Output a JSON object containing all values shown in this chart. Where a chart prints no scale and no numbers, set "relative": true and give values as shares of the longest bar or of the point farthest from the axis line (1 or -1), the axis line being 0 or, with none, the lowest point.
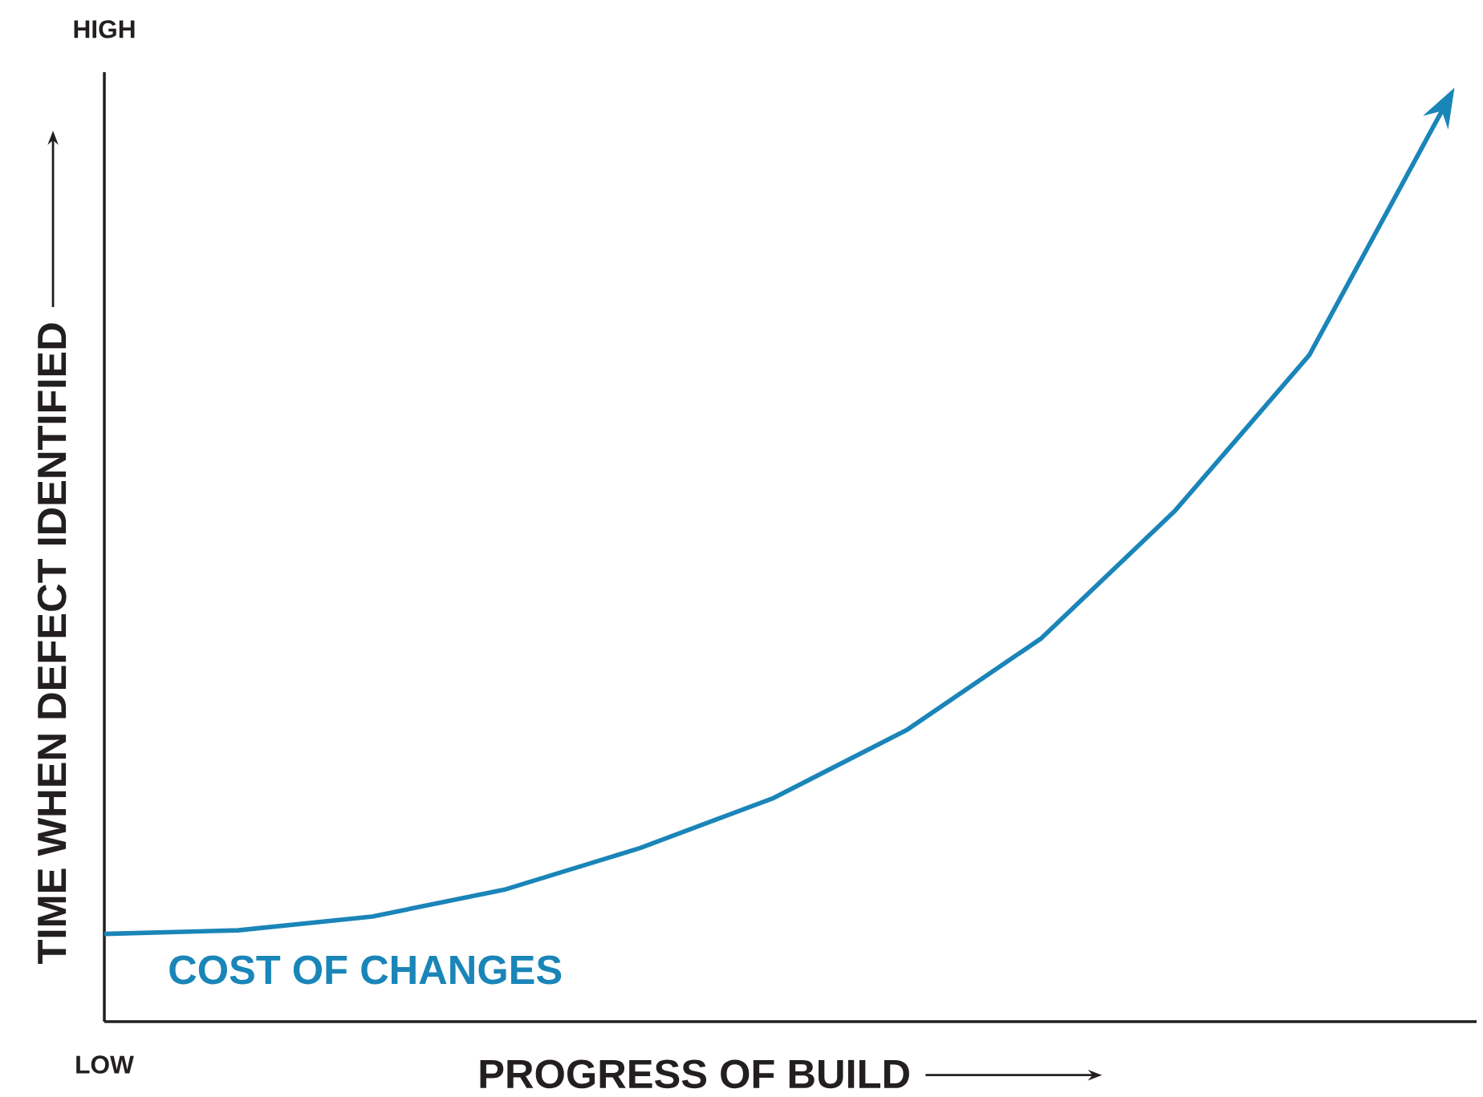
{
  "chart_data": {
    "type": "line",
    "relative": true,
    "xlabel": "PROGRESS OF BUILD",
    "ylabel": "TIME WHEN DEFECT IDENTIFIED",
    "annotations": [
      "HIGH",
      "LOW"
    ],
    "categories": [
      null,
      null,
      null,
      null,
      null,
      null,
      null,
      null,
      null,
      null,
      null
    ],
    "series": [
      {
        "name": "COST OF CHANGES",
        "color": "#1a85b8",
        "values": [
          0.096,
          0.1,
          0.115,
          0.145,
          0.19,
          0.245,
          0.32,
          0.42,
          0.56,
          0.73,
          1.0
        ]
      }
    ]
  }
}
